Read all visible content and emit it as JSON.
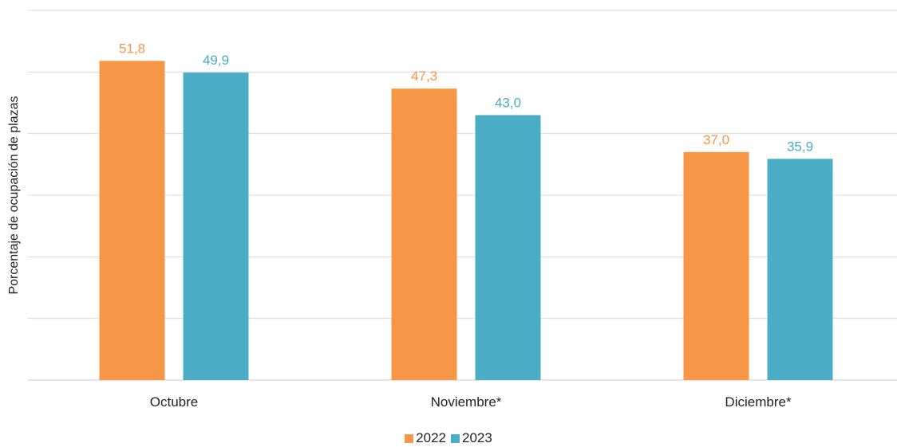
{
  "chart_data": {
    "type": "bar",
    "title": "",
    "xlabel": "",
    "ylabel": "Porcentaje de ocupación de plazas",
    "categories": [
      "Octubre",
      "Noviembre*",
      "Diciembre*"
    ],
    "series": [
      {
        "name": "2022",
        "color": "#F79646",
        "values": [
          51.8,
          47.3,
          37.0
        ],
        "labels": [
          "51,8",
          "47,3",
          "37,0"
        ]
      },
      {
        "name": "2023",
        "color": "#4BACC6",
        "values": [
          49.9,
          43.0,
          35.9
        ],
        "labels": [
          "49,9",
          "43,0",
          "35,9"
        ]
      }
    ],
    "ylim": [
      0,
      60
    ],
    "gridlines": [
      0,
      10,
      20,
      30,
      40,
      50,
      60
    ],
    "grid": true,
    "legend": "bottom-center"
  }
}
